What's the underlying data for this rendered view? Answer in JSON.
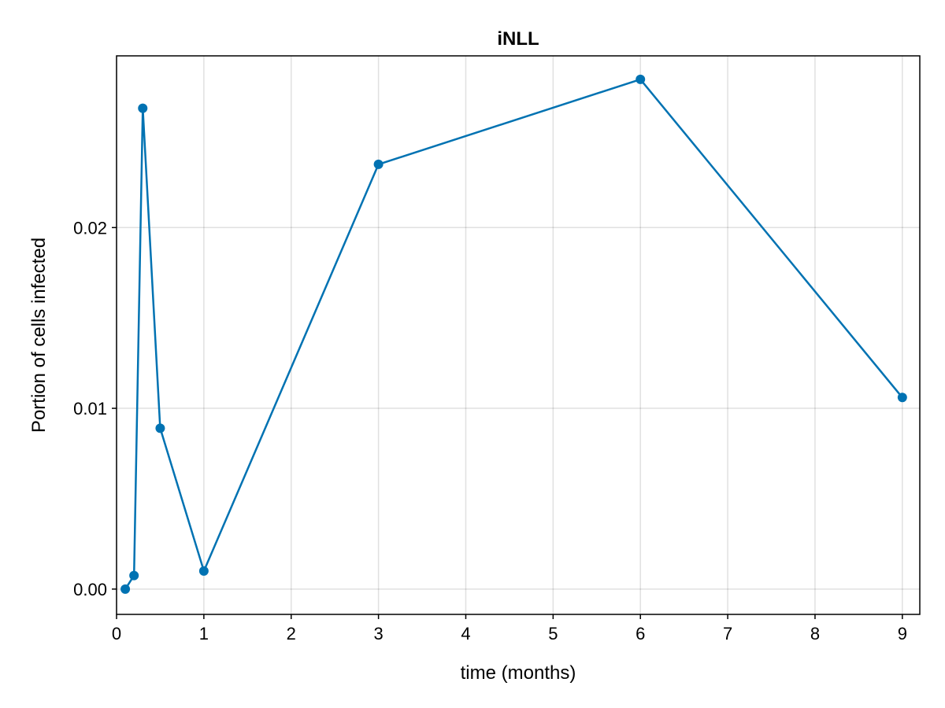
{
  "chart_data": {
    "type": "line",
    "title": "iNLL",
    "xlabel": "time (months)",
    "ylabel": "Portion of cells infected",
    "xlim": [
      0,
      9.2
    ],
    "ylim": [
      -0.0014,
      0.0295
    ],
    "x_ticks": [
      0,
      1,
      2,
      3,
      4,
      5,
      6,
      7,
      8,
      9
    ],
    "x_tick_labels": [
      "0",
      "1",
      "2",
      "3",
      "4",
      "5",
      "6",
      "7",
      "8",
      "9"
    ],
    "y_ticks": [
      0,
      0.01,
      0.02
    ],
    "y_tick_labels": [
      "0.00",
      "0.01",
      "0.02"
    ],
    "grid": true,
    "series": [
      {
        "color": "#0072b2",
        "marker": "circle",
        "x": [
          0.1,
          0.2,
          0.3,
          0.5,
          1,
          3,
          6,
          9
        ],
        "y": [
          0.0,
          0.00075,
          0.0266,
          0.0089,
          0.001,
          0.0235,
          0.0282,
          0.0106
        ]
      }
    ]
  }
}
